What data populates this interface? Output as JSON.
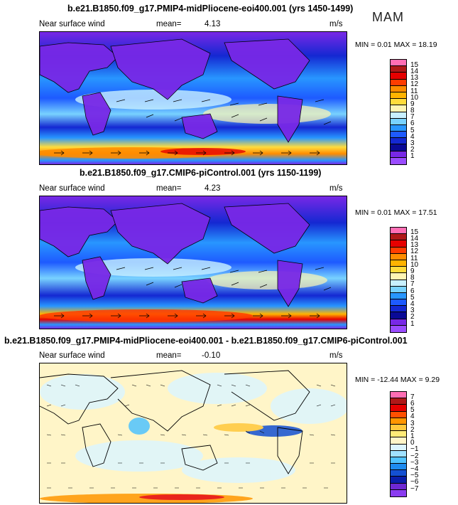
{
  "season": "MAM",
  "panels": [
    {
      "title": "b.e21.B1850.f09_g17.PMIP4-midPliocene-eoi400.001 (yrs 1450-1499)",
      "variable": "Near surface wind",
      "mean_label": "mean=",
      "mean_value": "4.13",
      "units": "m/s",
      "minmax": "MIN =    0.01  MAX =   18.19",
      "colorbar_labels": [
        "15",
        "14",
        "13",
        "12",
        "11",
        "10",
        "9",
        "8",
        "7",
        "6",
        "5",
        "4",
        "3",
        "2",
        "1"
      ],
      "colorbar_colors": [
        "#ff6eb4",
        "#b01818",
        "#e60000",
        "#ff3c00",
        "#ff8c00",
        "#ffb400",
        "#ffdc3c",
        "#fff5b4",
        "#c8f0ff",
        "#78d2ff",
        "#2896ff",
        "#1e5aff",
        "#1428d2",
        "#0a0a96",
        "#7828e6",
        "#9a4cff"
      ]
    },
    {
      "title": "b.e21.B1850.f09_g17.CMIP6-piControl.001 (yrs 1150-1199)",
      "variable": "Near surface wind",
      "mean_label": "mean=",
      "mean_value": "4.23",
      "units": "m/s",
      "minmax": "MIN =    0.01  MAX =   17.51",
      "colorbar_labels": [
        "15",
        "14",
        "13",
        "12",
        "11",
        "10",
        "9",
        "8",
        "7",
        "6",
        "5",
        "4",
        "3",
        "2",
        "1"
      ],
      "colorbar_colors": [
        "#ff6eb4",
        "#b01818",
        "#e60000",
        "#ff3c00",
        "#ff8c00",
        "#ffb400",
        "#ffdc3c",
        "#fff5b4",
        "#c8f0ff",
        "#78d2ff",
        "#2896ff",
        "#1e5aff",
        "#1428d2",
        "#0a0a96",
        "#7828e6",
        "#9a4cff"
      ]
    },
    {
      "title": "b.e21.B1850.f09_g17.PMIP4-midPliocene-eoi400.001 - b.e21.B1850.f09_g17.CMIP6-piControl.001",
      "variable": "Near surface wind",
      "mean_label": "mean=",
      "mean_value": "-0.10",
      "units": "m/s",
      "minmax": "MIN = -12.44  MAX =    9.29",
      "colorbar_labels": [
        "7",
        "6",
        "5",
        "4",
        "3",
        "2",
        "1",
        "0",
        "−1",
        "−2",
        "−3",
        "−4",
        "−5",
        "−6",
        "−7"
      ],
      "colorbar_colors": [
        "#ff6eb4",
        "#b01818",
        "#e60000",
        "#ff5000",
        "#ff9600",
        "#ffc83c",
        "#ffeb78",
        "#fff5c8",
        "#dcf5ff",
        "#a0e1ff",
        "#50c3ff",
        "#1e8cf0",
        "#1450d2",
        "#0a1eaa",
        "#6e28d2",
        "#8a3cf0"
      ]
    }
  ]
}
